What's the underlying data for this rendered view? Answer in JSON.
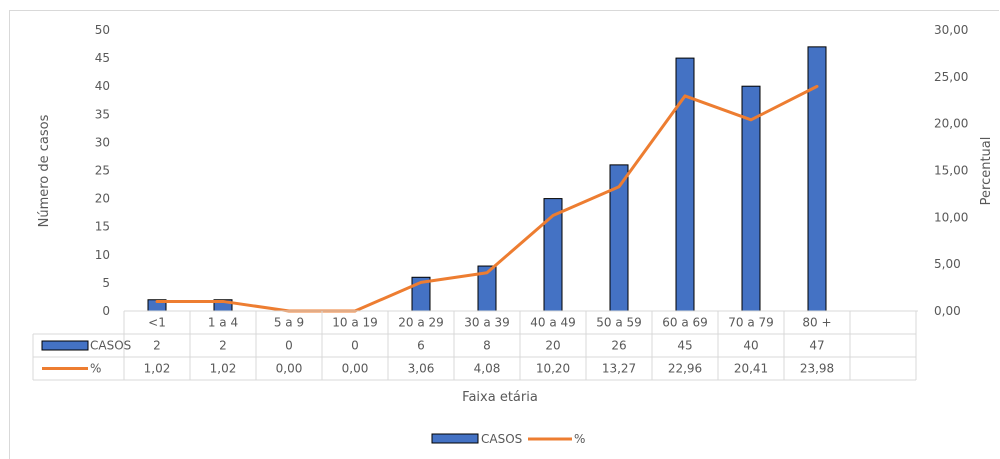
{
  "chart_data": {
    "type": "bar",
    "title": "",
    "xlabel": "Faixa etária",
    "ylabel": "Número de casos",
    "y2label": "Percentual",
    "categories": [
      "<1",
      "1 a 4",
      "5 a 9",
      "10 a 19",
      "20 a 29",
      "30 a 39",
      "40 a 49",
      "50 a 59",
      "60 a 69",
      "70 a 79",
      "80 +"
    ],
    "ylim": [
      0,
      50
    ],
    "yticks": [
      "0",
      "5",
      "10",
      "15",
      "20",
      "25",
      "30",
      "35",
      "40",
      "45",
      "50"
    ],
    "y2lim": [
      0,
      30
    ],
    "y2ticks": [
      "0,00",
      "5,00",
      "10,00",
      "15,00",
      "20,00",
      "25,00",
      "30,00"
    ],
    "series": [
      {
        "name": "CASOS",
        "type": "bar",
        "axis": "left",
        "color": "#4472c4",
        "values": [
          2,
          2,
          0,
          0,
          6,
          8,
          20,
          26,
          45,
          40,
          47
        ],
        "table_values": [
          "2",
          "2",
          "0",
          "0",
          "6",
          "8",
          "20",
          "26",
          "45",
          "40",
          "47"
        ]
      },
      {
        "name": "%",
        "type": "line",
        "axis": "right",
        "color": "#ed7d31",
        "values": [
          1.02,
          1.02,
          0.0,
          0.0,
          3.06,
          4.08,
          10.2,
          13.27,
          22.96,
          20.41,
          23.98
        ],
        "table_values": [
          "1,02",
          "1,02",
          "0,00",
          "0,00",
          "3,06",
          "4,08",
          "10,20",
          "13,27",
          "22,96",
          "20,41",
          "23,98"
        ]
      }
    ],
    "data_table": true,
    "grid": false,
    "legend_position": "bottom"
  }
}
